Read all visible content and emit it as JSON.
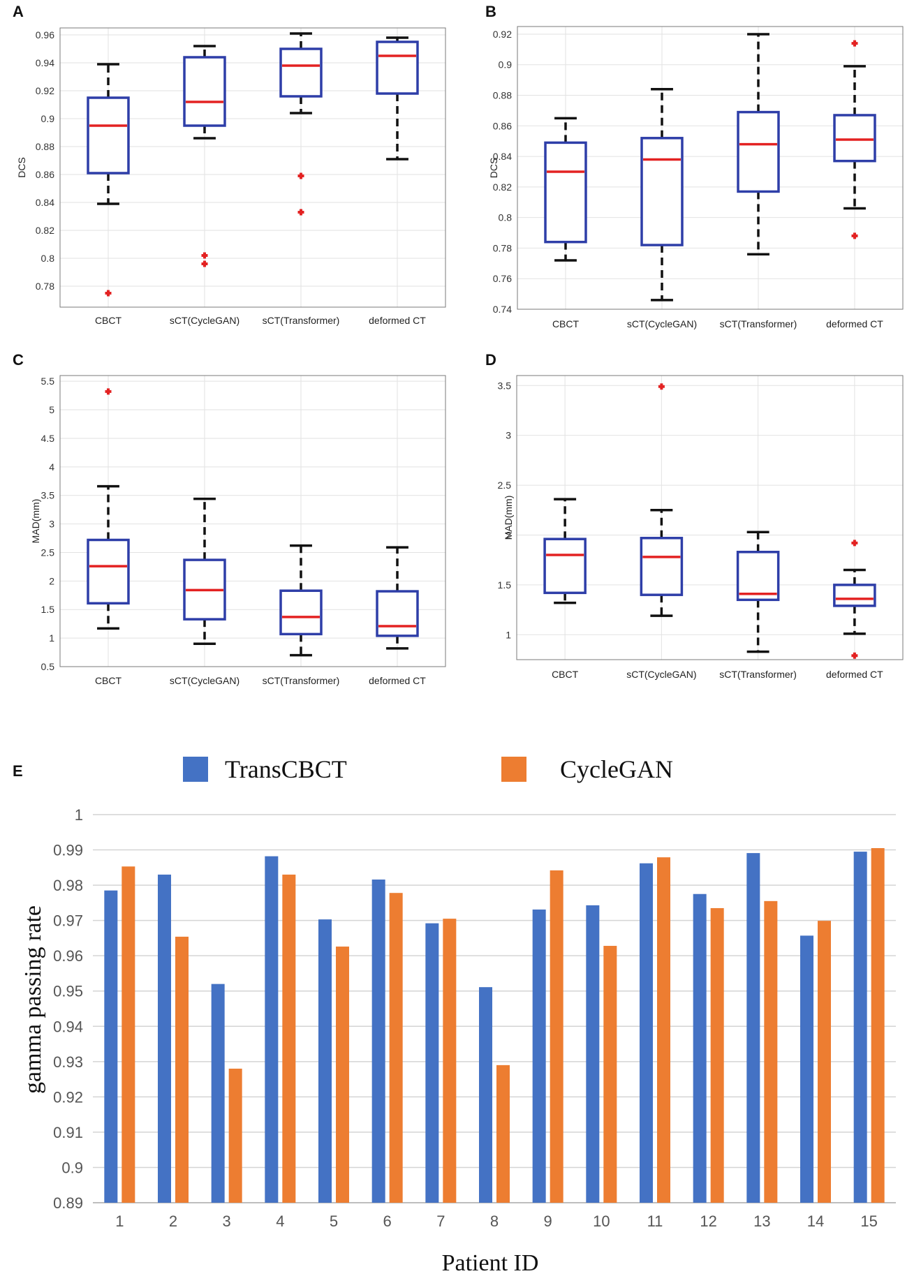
{
  "chart_data": [
    {
      "panel": "A",
      "type": "box",
      "title": "",
      "xlabel": "",
      "ylabel": "DCS",
      "ylim": [
        0.765,
        0.965
      ],
      "yticks": [
        0.78,
        0.8,
        0.82,
        0.84,
        0.86,
        0.88,
        0.9,
        0.92,
        0.94,
        0.96
      ],
      "yticklabels": [
        "0.78",
        "0.8",
        "0.82",
        "0.84",
        "0.86",
        "0.88",
        "0.9",
        "0.92",
        "0.94",
        "0.96"
      ],
      "grid": true,
      "categories": [
        "CBCT",
        "sCT(CycleGAN)",
        "sCT(Transformer)",
        "deformed CT"
      ],
      "boxes": [
        {
          "whisker_low": 0.839,
          "q1": 0.861,
          "median": 0.895,
          "q3": 0.915,
          "whisker_high": 0.939,
          "outliers": [
            0.775
          ]
        },
        {
          "whisker_low": 0.886,
          "q1": 0.895,
          "median": 0.912,
          "q3": 0.944,
          "whisker_high": 0.952,
          "outliers": [
            0.802,
            0.796
          ]
        },
        {
          "whisker_low": 0.904,
          "q1": 0.916,
          "median": 0.938,
          "q3": 0.95,
          "whisker_high": 0.961,
          "outliers": [
            0.859,
            0.833
          ]
        },
        {
          "whisker_low": 0.871,
          "q1": 0.918,
          "median": 0.945,
          "q3": 0.955,
          "whisker_high": 0.958,
          "outliers": []
        }
      ]
    },
    {
      "panel": "B",
      "type": "box",
      "title": "",
      "xlabel": "",
      "ylabel": "DCS",
      "ylim": [
        0.74,
        0.925
      ],
      "yticks": [
        0.74,
        0.76,
        0.78,
        0.8,
        0.82,
        0.84,
        0.86,
        0.88,
        0.9,
        0.92
      ],
      "yticklabels": [
        "0.74",
        "0.76",
        "0.78",
        "0.8",
        "0.82",
        "0.84",
        "0.86",
        "0.88",
        "0.9",
        "0.92"
      ],
      "grid": true,
      "categories": [
        "CBCT",
        "sCT(CycleGAN)",
        "sCT(Transformer)",
        "deformed CT"
      ],
      "boxes": [
        {
          "whisker_low": 0.772,
          "q1": 0.784,
          "median": 0.83,
          "q3": 0.849,
          "whisker_high": 0.865,
          "outliers": []
        },
        {
          "whisker_low": 0.746,
          "q1": 0.782,
          "median": 0.838,
          "q3": 0.852,
          "whisker_high": 0.884,
          "outliers": []
        },
        {
          "whisker_low": 0.776,
          "q1": 0.817,
          "median": 0.848,
          "q3": 0.869,
          "whisker_high": 0.92,
          "outliers": []
        },
        {
          "whisker_low": 0.806,
          "q1": 0.837,
          "median": 0.851,
          "q3": 0.867,
          "whisker_high": 0.899,
          "outliers": [
            0.914,
            0.788
          ]
        }
      ]
    },
    {
      "panel": "C",
      "type": "box",
      "title": "",
      "xlabel": "",
      "ylabel": "MAD(mm)",
      "ylim": [
        0.5,
        5.6
      ],
      "yticks": [
        0.5,
        1,
        1.5,
        2,
        2.5,
        3,
        3.5,
        4,
        4.5,
        5,
        5.5
      ],
      "yticklabels": [
        "0.5",
        "1",
        "1.5",
        "2",
        "2.5",
        "3",
        "3.5",
        "4",
        "4.5",
        "5",
        "5.5"
      ],
      "grid": true,
      "categories": [
        "CBCT",
        "sCT(CycleGAN)",
        "sCT(Transformer)",
        "deformed CT"
      ],
      "boxes": [
        {
          "whisker_low": 1.17,
          "q1": 1.61,
          "median": 2.26,
          "q3": 2.72,
          "whisker_high": 3.66,
          "outliers": [
            5.32
          ]
        },
        {
          "whisker_low": 0.9,
          "q1": 1.33,
          "median": 1.84,
          "q3": 2.37,
          "whisker_high": 3.44,
          "outliers": []
        },
        {
          "whisker_low": 0.7,
          "q1": 1.07,
          "median": 1.37,
          "q3": 1.83,
          "whisker_high": 2.62,
          "outliers": []
        },
        {
          "whisker_low": 0.82,
          "q1": 1.04,
          "median": 1.21,
          "q3": 1.82,
          "whisker_high": 2.59,
          "outliers": []
        }
      ]
    },
    {
      "panel": "D",
      "type": "box",
      "title": "",
      "xlabel": "",
      "ylabel": "MAD(mm)",
      "ylim": [
        0.75,
        3.6
      ],
      "yticks": [
        1,
        1.5,
        2,
        2.5,
        3,
        3.5
      ],
      "yticklabels": [
        "1",
        "1.5",
        "2",
        "2.5",
        "3",
        "3.5"
      ],
      "grid": true,
      "categories": [
        "CBCT",
        "sCT(CycleGAN)",
        "sCT(Transformer)",
        "deformed CT"
      ],
      "boxes": [
        {
          "whisker_low": 1.32,
          "q1": 1.42,
          "median": 1.8,
          "q3": 1.96,
          "whisker_high": 2.36,
          "outliers": []
        },
        {
          "whisker_low": 1.19,
          "q1": 1.4,
          "median": 1.78,
          "q3": 1.97,
          "whisker_high": 2.25,
          "outliers": [
            3.49
          ]
        },
        {
          "whisker_low": 0.83,
          "q1": 1.35,
          "median": 1.41,
          "q3": 1.83,
          "whisker_high": 2.03,
          "outliers": []
        },
        {
          "whisker_low": 1.01,
          "q1": 1.29,
          "median": 1.36,
          "q3": 1.5,
          "whisker_high": 1.65,
          "outliers": [
            1.92,
            0.79
          ]
        }
      ]
    },
    {
      "panel": "E",
      "type": "bar",
      "title": "",
      "xlabel": "Patient ID",
      "ylabel": "gamma passing rate",
      "ylim": [
        0.89,
        1.0
      ],
      "yticks": [
        0.89,
        0.9,
        0.91,
        0.92,
        0.93,
        0.94,
        0.95,
        0.96,
        0.97,
        0.98,
        0.99,
        1
      ],
      "yticklabels": [
        "0.89",
        "0.9",
        "0.91",
        "0.92",
        "0.93",
        "0.94",
        "0.95",
        "0.96",
        "0.97",
        "0.98",
        "0.99",
        "1"
      ],
      "grid": true,
      "legend_position": "top",
      "categories": [
        "1",
        "2",
        "3",
        "4",
        "5",
        "6",
        "7",
        "8",
        "9",
        "10",
        "11",
        "12",
        "13",
        "14",
        "15"
      ],
      "series": [
        {
          "name": "TransCBCT",
          "color": "#4472c4",
          "values": [
            0.9785,
            0.983,
            0.952,
            0.9882,
            0.9703,
            0.9816,
            0.9692,
            0.9511,
            0.9731,
            0.9743,
            0.9862,
            0.9775,
            0.9891,
            0.9657,
            0.9895
          ]
        },
        {
          "name": "CycleGAN",
          "color": "#ed7d31",
          "values": [
            0.9853,
            0.9654,
            0.928,
            0.983,
            0.9626,
            0.9778,
            0.9705,
            0.929,
            0.9842,
            0.9628,
            0.9879,
            0.9735,
            0.9755,
            0.9699,
            0.9905
          ]
        }
      ]
    }
  ],
  "colors": {
    "box_edge": "#2e3ea8",
    "median": "#e32222",
    "outlier": "#e32222",
    "whisker": "#111111",
    "grid": "#e2e2e2",
    "bar_grid": "#d4d4d4"
  }
}
